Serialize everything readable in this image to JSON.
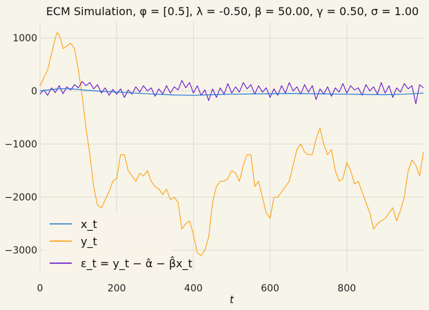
{
  "chart_data": {
    "type": "line",
    "title": "ECM Simulation, φ = [0.5], λ = -0.50, β = 50.00, γ = 0.50, σ = 1.00",
    "xlabel": "t",
    "ylabel": "",
    "xlim": [
      0,
      1000
    ],
    "ylim": [
      -3400,
      1300
    ],
    "xticks": [
      0,
      200,
      400,
      600,
      800
    ],
    "yticks": [
      1000,
      0,
      -1000,
      -2000,
      -3000
    ],
    "xtick_labels": [
      "0",
      "200",
      "400",
      "600",
      "800"
    ],
    "ytick_labels": [
      "1000",
      "0",
      "−1000",
      "−2000",
      "−3000"
    ],
    "grid": true,
    "legend_position": "lower-left",
    "series": [
      {
        "name": "x_t",
        "color": "#1f77d4",
        "x": [
          0,
          20,
          40,
          60,
          80,
          100,
          120,
          150,
          200,
          250,
          300,
          350,
          400,
          450,
          500,
          550,
          600,
          650,
          700,
          750,
          800,
          850,
          900,
          950,
          1000
        ],
        "y": [
          0,
          20,
          35,
          45,
          40,
          30,
          15,
          0,
          -20,
          -40,
          -60,
          -75,
          -80,
          -70,
          -60,
          -55,
          -50,
          -45,
          -50,
          -55,
          -60,
          -65,
          -70,
          -60,
          -40
        ]
      },
      {
        "name": "y_t",
        "color": "#ff9900",
        "x": [
          0,
          10,
          20,
          30,
          40,
          45,
          50,
          55,
          60,
          70,
          80,
          90,
          100,
          110,
          120,
          130,
          140,
          150,
          160,
          170,
          180,
          190,
          200,
          210,
          220,
          230,
          240,
          250,
          260,
          270,
          280,
          290,
          300,
          310,
          320,
          330,
          340,
          350,
          360,
          370,
          380,
          390,
          400,
          410,
          420,
          430,
          440,
          450,
          460,
          470,
          480,
          490,
          500,
          510,
          520,
          530,
          540,
          550,
          560,
          570,
          580,
          590,
          600,
          610,
          620,
          630,
          640,
          650,
          660,
          670,
          680,
          690,
          700,
          710,
          720,
          730,
          740,
          750,
          760,
          770,
          780,
          790,
          800,
          810,
          820,
          830,
          840,
          850,
          860,
          870,
          880,
          890,
          900,
          910,
          920,
          930,
          940,
          950,
          960,
          970,
          980,
          990,
          1000
        ],
        "y": [
          100,
          250,
          400,
          700,
          1000,
          1100,
          1050,
          950,
          800,
          850,
          900,
          800,
          400,
          -100,
          -700,
          -1200,
          -1800,
          -2150,
          -2200,
          -2050,
          -1900,
          -1700,
          -1650,
          -1200,
          -1200,
          -1500,
          -1600,
          -1700,
          -1550,
          -1600,
          -1500,
          -1700,
          -1800,
          -1850,
          -1950,
          -1850,
          -2050,
          -2000,
          -2100,
          -2600,
          -2500,
          -2450,
          -2700,
          -3050,
          -3100,
          -3000,
          -2750,
          -2100,
          -1800,
          -1700,
          -1700,
          -1650,
          -1500,
          -1550,
          -1700,
          -1400,
          -1200,
          -1200,
          -1800,
          -1700,
          -2000,
          -2300,
          -2400,
          -2000,
          -2000,
          -1900,
          -1800,
          -1700,
          -1400,
          -1100,
          -1000,
          -1150,
          -1200,
          -1200,
          -900,
          -700,
          -1000,
          -1200,
          -1100,
          -1500,
          -1700,
          -1650,
          -1350,
          -1500,
          -1750,
          -1700,
          -1900,
          -2100,
          -2300,
          -2600,
          -2500,
          -2450,
          -2400,
          -2300,
          -2200,
          -2450,
          -2250,
          -2000,
          -1500,
          -1300,
          -1400,
          -1600,
          -1150
        ]
      },
      {
        "name": "ε_t = y_t − α̂ − β̂x_t",
        "color": "#5a00c8",
        "x": [
          0,
          10,
          20,
          30,
          40,
          50,
          60,
          70,
          80,
          90,
          100,
          110,
          120,
          130,
          140,
          150,
          160,
          170,
          180,
          190,
          200,
          210,
          220,
          230,
          240,
          250,
          260,
          270,
          280,
          290,
          300,
          310,
          320,
          330,
          340,
          350,
          360,
          370,
          380,
          390,
          400,
          410,
          420,
          430,
          440,
          450,
          460,
          470,
          480,
          490,
          500,
          510,
          520,
          530,
          540,
          550,
          560,
          570,
          580,
          590,
          600,
          610,
          620,
          630,
          640,
          650,
          660,
          670,
          680,
          690,
          700,
          710,
          720,
          730,
          740,
          750,
          760,
          770,
          780,
          790,
          800,
          810,
          820,
          830,
          840,
          850,
          860,
          870,
          880,
          890,
          900,
          910,
          920,
          930,
          940,
          950,
          960,
          970,
          980,
          990,
          1000
        ],
        "y": [
          -60,
          20,
          -80,
          60,
          -30,
          100,
          -50,
          80,
          20,
          120,
          60,
          180,
          100,
          160,
          40,
          120,
          -40,
          60,
          -80,
          30,
          -60,
          40,
          -120,
          20,
          -60,
          80,
          -20,
          100,
          0,
          60,
          -100,
          40,
          -60,
          100,
          -40,
          80,
          20,
          200,
          60,
          160,
          -40,
          100,
          -80,
          20,
          -180,
          40,
          -120,
          60,
          -60,
          140,
          -40,
          80,
          -20,
          160,
          40,
          120,
          -60,
          100,
          -20,
          60,
          -120,
          40,
          -80,
          100,
          -40,
          160,
          0,
          80,
          -60,
          120,
          -20,
          100,
          -160,
          40,
          -60,
          80,
          -100,
          60,
          -20,
          140,
          -40,
          100,
          20,
          60,
          -80,
          120,
          0,
          80,
          -60,
          160,
          -40,
          100,
          -120,
          60,
          -20,
          140,
          40,
          100,
          -240,
          120,
          60
        ]
      }
    ]
  }
}
